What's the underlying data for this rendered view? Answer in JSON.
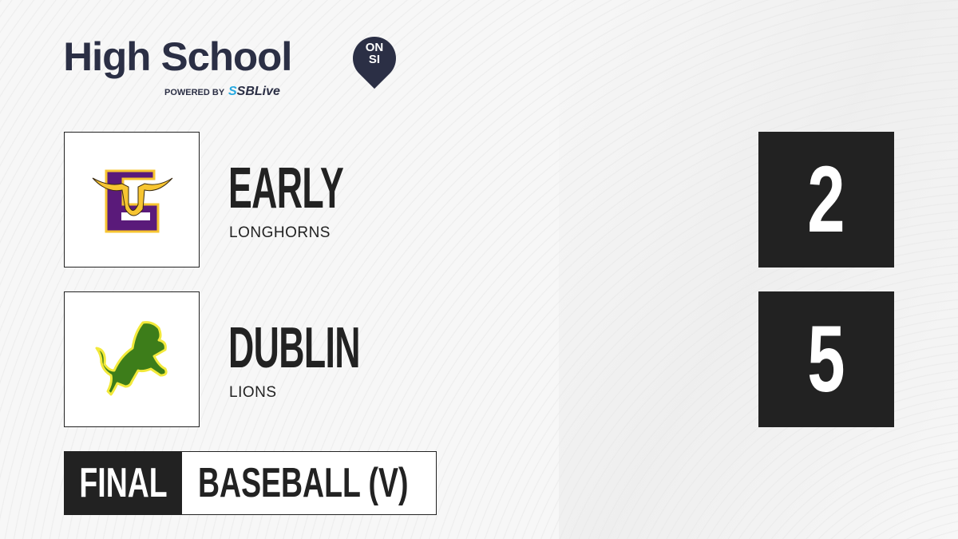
{
  "brand": {
    "title": "High School",
    "badge_top": "ON",
    "badge_bottom": "SI",
    "powered_by": "POWERED BY",
    "partner_prefix": "S",
    "partner": "SBLive",
    "colors": {
      "navy": "#2b2f45",
      "accent": "#27a9e1"
    }
  },
  "teams": [
    {
      "name": "EARLY",
      "mascot": "LONGHORNS",
      "score": "2",
      "logo_icon": "longhorn-e-logo",
      "colors": {
        "primary": "#5a1a7a",
        "secondary": "#f7c531"
      }
    },
    {
      "name": "DUBLIN",
      "mascot": "LIONS",
      "score": "5",
      "logo_icon": "lion-logo",
      "colors": {
        "primary": "#3d7d1a",
        "secondary": "#f2e93a"
      }
    }
  ],
  "status": "FINAL",
  "sport": "BASEBALL (V)"
}
